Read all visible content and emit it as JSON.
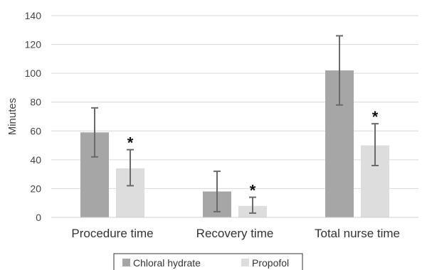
{
  "chart_data": {
    "type": "bar",
    "ylabel": "Minutes",
    "ylim": [
      0,
      140
    ],
    "yticks": [
      0,
      20,
      40,
      60,
      80,
      100,
      120,
      140
    ],
    "grid": true,
    "categories": [
      "Procedure time",
      "Recovery time",
      "Total nurse time"
    ],
    "series": [
      {
        "name": "Chloral hydrate",
        "color": "#a6a6a6",
        "values": [
          59,
          18,
          102
        ],
        "error_low": [
          42,
          4,
          78
        ],
        "error_high": [
          76,
          32,
          126
        ]
      },
      {
        "name": "Propofol",
        "color": "#dddddd",
        "values": [
          34,
          8,
          50
        ],
        "error_low": [
          22,
          3,
          36
        ],
        "error_high": [
          47,
          14,
          65
        ],
        "significance": [
          "*",
          "*",
          "*"
        ]
      }
    ],
    "legend_position": "bottom"
  }
}
